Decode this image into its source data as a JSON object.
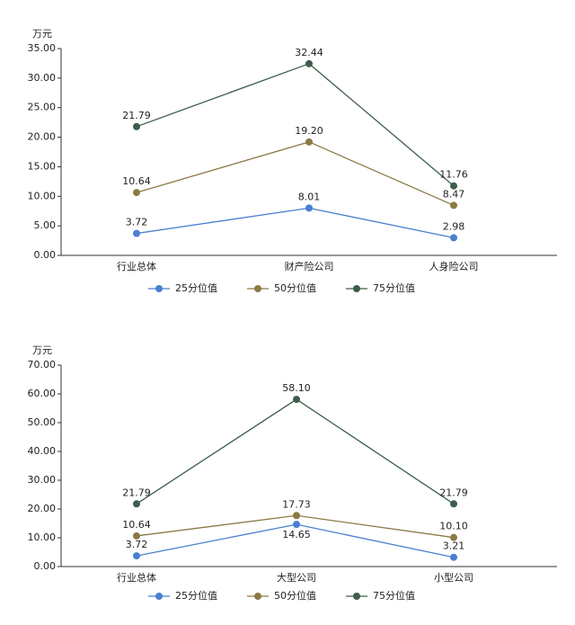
{
  "chart_data": [
    {
      "type": "line",
      "y_label": "万元",
      "categories": [
        "行业总体",
        "财产险公司",
        "人身险公司"
      ],
      "ylim": [
        0,
        35
      ],
      "yticks": [
        {
          "value": 0,
          "label": "0.00"
        },
        {
          "value": 5,
          "label": "5.00"
        },
        {
          "value": 10,
          "label": "10.00"
        },
        {
          "value": 15,
          "label": "15.00"
        },
        {
          "value": 20,
          "label": "20.00"
        },
        {
          "value": 25,
          "label": "25.00"
        },
        {
          "value": 30,
          "label": "30.00"
        },
        {
          "value": 35,
          "label": "35.00"
        }
      ],
      "series": [
        {
          "name": "25分位值",
          "color": "#4a7fd0",
          "values": [
            3.72,
            8.01,
            2.98
          ],
          "value_labels": [
            "3.72",
            "8.01",
            "2.98"
          ]
        },
        {
          "name": "50分位值",
          "color": "#8c7a45",
          "values": [
            10.64,
            19.2,
            8.47
          ],
          "value_labels": [
            "10.64",
            "19.20",
            "8.47"
          ]
        },
        {
          "name": "75分位值",
          "color": "#3d5e4a",
          "values": [
            21.79,
            32.44,
            11.76
          ],
          "value_labels": [
            "21.79",
            "32.44",
            "11.76"
          ]
        }
      ]
    },
    {
      "type": "line",
      "y_label": "万元",
      "categories": [
        "行业总体",
        "大型公司",
        "小型公司"
      ],
      "ylim": [
        0,
        70
      ],
      "yticks": [
        {
          "value": 0,
          "label": "0.00"
        },
        {
          "value": 10,
          "label": "10.00"
        },
        {
          "value": 20,
          "label": "20.00"
        },
        {
          "value": 30,
          "label": "30.00"
        },
        {
          "value": 40,
          "label": "40.00"
        },
        {
          "value": 50,
          "label": "50.00"
        },
        {
          "value": 60,
          "label": "60.00"
        },
        {
          "value": 70,
          "label": "70.00"
        }
      ],
      "series": [
        {
          "name": "25分位值",
          "color": "#4a7fd0",
          "values": [
            3.72,
            14.65,
            3.21
          ],
          "value_labels": [
            "3.72",
            "14.65",
            "3.21"
          ]
        },
        {
          "name": "50分位值",
          "color": "#8c7a45",
          "values": [
            10.64,
            17.73,
            10.1
          ],
          "value_labels": [
            "10.64",
            "17.73",
            "10.10"
          ]
        },
        {
          "name": "75分位值",
          "color": "#3d5e4a",
          "values": [
            21.79,
            58.1,
            21.79
          ],
          "value_labels": [
            "21.79",
            "58.10",
            "21.79"
          ]
        }
      ]
    }
  ]
}
